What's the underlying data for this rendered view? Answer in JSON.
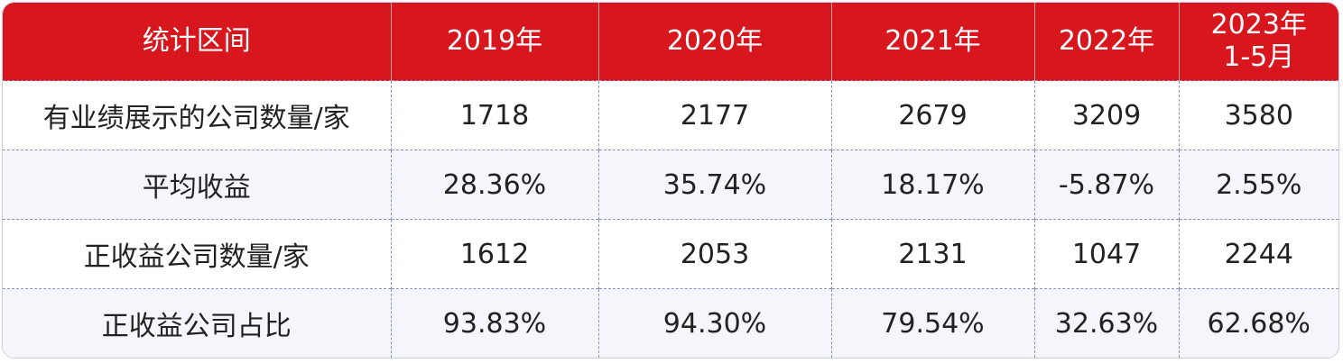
{
  "table": {
    "header": [
      "统计区间",
      "2019年",
      "2020年",
      "2021年",
      "2022年",
      [
        "2023年",
        "1-5月"
      ]
    ],
    "rows": [
      [
        "有业绩展示的公司数量/家",
        "1718",
        "2177",
        "2679",
        "3209",
        "3580"
      ],
      [
        "平均收益",
        "28.36%",
        "35.74%",
        "18.17%",
        "-5.87%",
        "2.55%"
      ],
      [
        "正收益公司数量/家",
        "1612",
        "2053",
        "2131",
        "1047",
        "2244"
      ],
      [
        "正收益公司占比",
        "93.83%",
        "94.30%",
        "79.54%",
        "32.63%",
        "62.68%"
      ]
    ]
  }
}
